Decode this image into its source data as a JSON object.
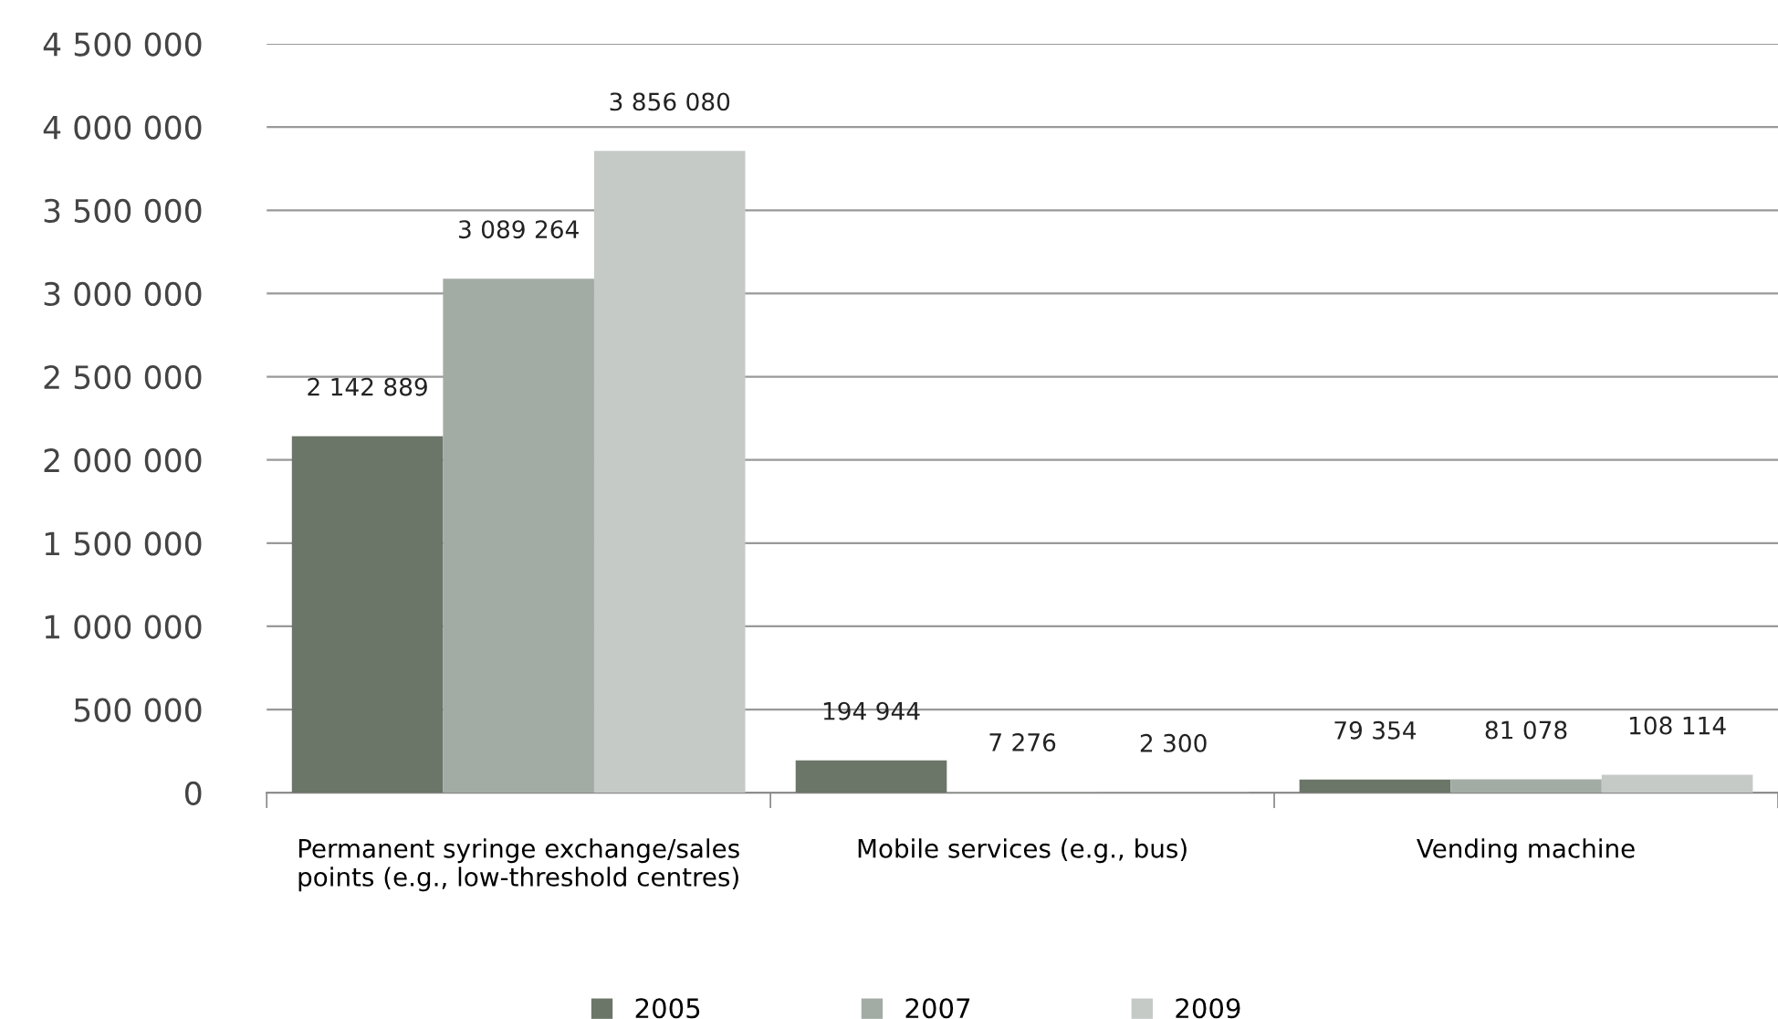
{
  "chart_data": {
    "type": "bar",
    "categories": [
      "Permanent syringe exchange/sales\npoints (e.g., low-threshold centres)",
      "Mobile services (e.g., bus)",
      "Vending machine"
    ],
    "series": [
      {
        "name": "2005",
        "color": "#6b7568",
        "values": [
          2142889,
          194944,
          79354
        ],
        "value_labels": [
          "2 142 889",
          "194 944",
          "79 354"
        ]
      },
      {
        "name": "2007",
        "color": "#a3aba5",
        "values": [
          3089264,
          7276,
          81078
        ],
        "value_labels": [
          "3 089 264",
          "7 276",
          "81 078"
        ]
      },
      {
        "name": "2009",
        "color": "#c5cac7",
        "values": [
          3856080,
          2300,
          108114
        ],
        "value_labels": [
          "3 856 080",
          "2 300",
          "108 114"
        ]
      }
    ],
    "ylim": [
      0,
      4500000
    ],
    "yticks": [
      {
        "value": 0,
        "label": "0"
      },
      {
        "value": 500000,
        "label": "500 000"
      },
      {
        "value": 1000000,
        "label": "1 000 000"
      },
      {
        "value": 1500000,
        "label": "1 500 000"
      },
      {
        "value": 2000000,
        "label": "2 000 000"
      },
      {
        "value": 2500000,
        "label": "2 500 000"
      },
      {
        "value": 3000000,
        "label": "3 000 000"
      },
      {
        "value": 3500000,
        "label": "3 500 000"
      },
      {
        "value": 4000000,
        "label": "4 000 000"
      },
      {
        "value": 4500000,
        "label": "4 500 000"
      }
    ],
    "grid": "y",
    "legend": "bottom"
  }
}
